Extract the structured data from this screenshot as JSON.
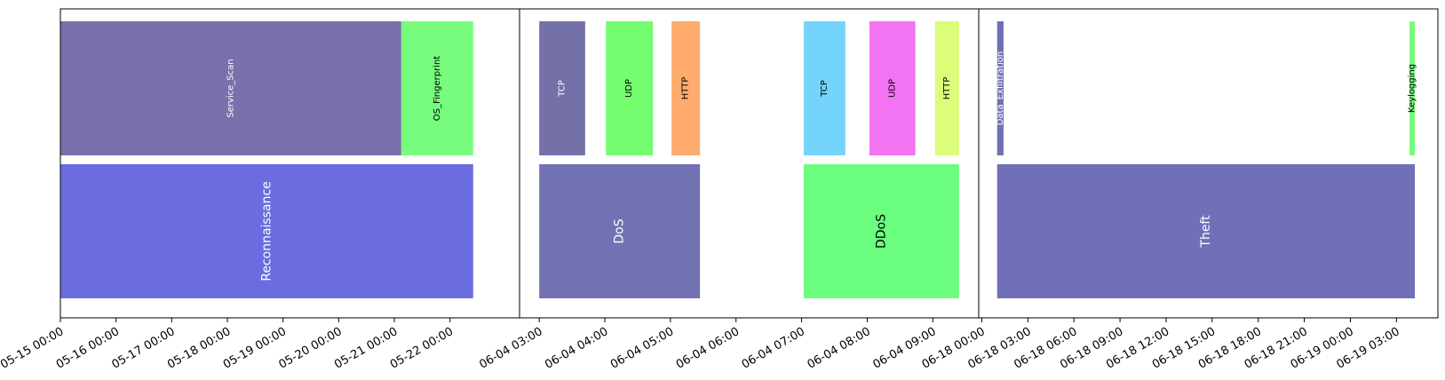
{
  "chart_data": {
    "type": "timeline",
    "title": "",
    "panels": [
      {
        "x_ticks": [
          "05-15 00:00",
          "05-16 00:00",
          "05-17 00:00",
          "05-18 00:00",
          "05-19 00:00",
          "05-20 00:00",
          "05-21 00:00",
          "05-22 00:00"
        ],
        "x_range": [
          "05-15 00:00",
          "05-23 06:00"
        ],
        "categories": [
          {
            "label": "Reconnaissance",
            "start": "05-15 00:00",
            "end": "05-22 10:00",
            "color": "#6a6ce0",
            "text_color": "#ffffff"
          }
        ],
        "subcategories": [
          {
            "label": "Service_Scan",
            "start": "05-15 00:00",
            "end": "05-21 03:00",
            "color": "#7871ac",
            "text_color": "#ffffff"
          },
          {
            "label": "OS_Fingerprint",
            "start": "05-21 03:00",
            "end": "05-22 10:00",
            "color": "#77fc7e",
            "text_color": "#000000"
          }
        ]
      },
      {
        "x_ticks": [
          "06-04 03:00",
          "06-04 04:00",
          "06-04 05:00",
          "06-04 06:00",
          "06-04 07:00",
          "06-04 08:00",
          "06-04 09:00"
        ],
        "x_range": [
          "06-04 02:42",
          "06-04 09:42"
        ],
        "categories": [
          {
            "label": "DoS",
            "start": "06-04 03:00",
            "end": "06-04 05:27",
            "color": "#7171b3",
            "text_color": "#ffffff"
          },
          {
            "label": "DDoS",
            "start": "06-04 07:02",
            "end": "06-04 09:24",
            "color": "#6afd7e",
            "text_color": "#000000"
          }
        ],
        "subcategories": [
          {
            "label": "TCP",
            "start": "06-04 03:00",
            "end": "06-04 03:42",
            "color": "#7470a8",
            "text_color": "#ffffff"
          },
          {
            "label": "UDP",
            "start": "06-04 04:01",
            "end": "06-04 04:44",
            "color": "#73fd6f",
            "text_color": "#000000"
          },
          {
            "label": "HTTP",
            "start": "06-04 05:01",
            "end": "06-04 05:27",
            "color": "#feab6d",
            "text_color": "#000000"
          },
          {
            "label": "TCP",
            "start": "06-04 07:02",
            "end": "06-04 07:40",
            "color": "#74d3fb",
            "text_color": "#000000"
          },
          {
            "label": "UDP",
            "start": "06-04 08:02",
            "end": "06-04 08:44",
            "color": "#f274f2",
            "text_color": "#000000"
          },
          {
            "label": "HTTP",
            "start": "06-04 09:02",
            "end": "06-04 09:24",
            "color": "#dcfd7a",
            "text_color": "#000000"
          }
        ]
      },
      {
        "x_ticks": [
          "06-18 00:00",
          "06-18 03:00",
          "06-18 06:00",
          "06-18 09:00",
          "06-18 12:00",
          "06-18 15:00",
          "06-18 18:00",
          "06-18 21:00",
          "06-19 00:00",
          "06-19 03:00"
        ],
        "x_range": [
          "06-17 23:48",
          "06-19 05:42"
        ],
        "categories": [
          {
            "label": "Theft",
            "start": "06-18 01:00",
            "end": "06-19 04:12",
            "color": "#716fb7",
            "text_color": "#ffffff"
          }
        ],
        "subcategories": [
          {
            "label": "Data_Exfiltration",
            "start": "06-18 01:00",
            "end": "06-18 01:25",
            "color": "#7170b6",
            "text_color": "#ffffff"
          },
          {
            "label": "Keylogging",
            "start": "06-19 03:51",
            "end": "06-19 04:12",
            "color": "#77fd7b",
            "text_color": "#000000"
          }
        ]
      }
    ]
  }
}
